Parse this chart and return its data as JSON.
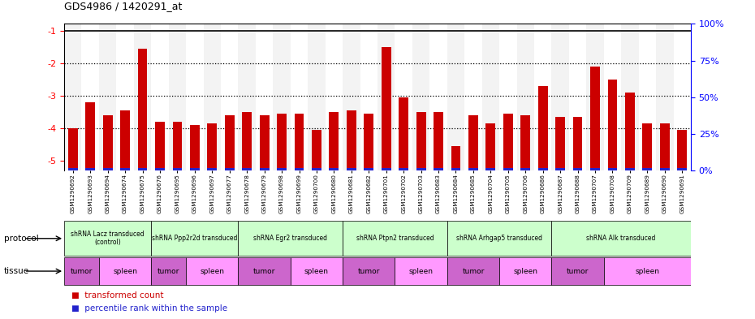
{
  "title": "GDS4986 / 1420291_at",
  "samples": [
    "GSM1290692",
    "GSM1290693",
    "GSM1290694",
    "GSM1290674",
    "GSM1290675",
    "GSM1290676",
    "GSM1290695",
    "GSM1290696",
    "GSM1290697",
    "GSM1290677",
    "GSM1290678",
    "GSM1290679",
    "GSM1290698",
    "GSM1290699",
    "GSM1290700",
    "GSM1290680",
    "GSM1290681",
    "GSM1290682",
    "GSM1290701",
    "GSM1290702",
    "GSM1290703",
    "GSM1290683",
    "GSM1290684",
    "GSM1290685",
    "GSM1290704",
    "GSM1290705",
    "GSM1290706",
    "GSM1290686",
    "GSM1290687",
    "GSM1290688",
    "GSM1290707",
    "GSM1290708",
    "GSM1290709",
    "GSM1290689",
    "GSM1290690",
    "GSM1290691"
  ],
  "bar_values": [
    -4.0,
    -3.2,
    -3.6,
    -3.45,
    -1.55,
    -3.8,
    -3.8,
    -3.9,
    -3.85,
    -3.6,
    -3.5,
    -3.6,
    -3.55,
    -3.55,
    -4.05,
    -3.5,
    -3.45,
    -3.55,
    -1.5,
    -3.05,
    -3.5,
    -3.5,
    -4.55,
    -3.6,
    -3.85,
    -3.55,
    -3.6,
    -2.7,
    -3.65,
    -3.65,
    -2.1,
    -2.5,
    -2.9,
    -3.85,
    -3.85,
    -4.05
  ],
  "ylim_left": [
    -5.3,
    -0.8
  ],
  "ylim_right": [
    0,
    100
  ],
  "yticks_left": [
    -5,
    -4,
    -3,
    -2,
    -1
  ],
  "yticks_right": [
    0,
    25,
    50,
    75,
    100
  ],
  "bar_color": "#cc0000",
  "percentile_color": "#2222cc",
  "dot_grid_color": "#000000",
  "bg_color": "#ffffff",
  "protocols": [
    {
      "label": "shRNA Lacz transduced\n(control)",
      "start": 0,
      "end": 4,
      "color": "#ccffcc"
    },
    {
      "label": "shRNA Ppp2r2d transduced",
      "start": 5,
      "end": 9,
      "color": "#ccffcc"
    },
    {
      "label": "shRNA Egr2 transduced",
      "start": 10,
      "end": 15,
      "color": "#ccffcc"
    },
    {
      "label": "shRNA Ptpn2 transduced",
      "start": 16,
      "end": 21,
      "color": "#ccffcc"
    },
    {
      "label": "shRNA Arhgap5 transduced",
      "start": 22,
      "end": 27,
      "color": "#ccffcc"
    },
    {
      "label": "shRNA Alk transduced",
      "start": 28,
      "end": 35,
      "color": "#ccffcc"
    }
  ],
  "tissues": [
    {
      "label": "tumor",
      "start": 0,
      "end": 1,
      "color": "#cc66cc"
    },
    {
      "label": "spleen",
      "start": 2,
      "end": 4,
      "color": "#ff99ff"
    },
    {
      "label": "tumor",
      "start": 5,
      "end": 6,
      "color": "#cc66cc"
    },
    {
      "label": "spleen",
      "start": 7,
      "end": 9,
      "color": "#ff99ff"
    },
    {
      "label": "tumor",
      "start": 10,
      "end": 12,
      "color": "#cc66cc"
    },
    {
      "label": "spleen",
      "start": 13,
      "end": 15,
      "color": "#ff99ff"
    },
    {
      "label": "tumor",
      "start": 16,
      "end": 18,
      "color": "#cc66cc"
    },
    {
      "label": "spleen",
      "start": 19,
      "end": 21,
      "color": "#ff99ff"
    },
    {
      "label": "tumor",
      "start": 22,
      "end": 24,
      "color": "#cc66cc"
    },
    {
      "label": "spleen",
      "start": 25,
      "end": 27,
      "color": "#ff99ff"
    },
    {
      "label": "tumor",
      "start": 28,
      "end": 30,
      "color": "#cc66cc"
    },
    {
      "label": "spleen",
      "start": 31,
      "end": 35,
      "color": "#ff99ff"
    }
  ]
}
